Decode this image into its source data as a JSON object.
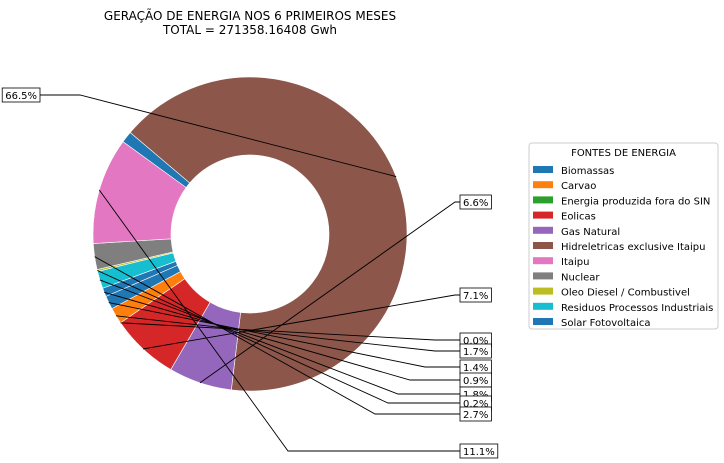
{
  "chart_data": {
    "type": "pie",
    "donut": true,
    "title": "GERAÇÃO DE ENERGIA NOS 6 PRIMEIROS MESES",
    "subtitle": "TOTAL = 271358.16408 Gwh",
    "legend": {
      "title": "FONTES DE ENERGIA",
      "placement": "right"
    },
    "slices": [
      {
        "name": "Solar Fotovoltaica",
        "value": 1.2,
        "label": "1.2%",
        "color": "#1f77b4"
      },
      {
        "name": "Hidreletricas exclusive Itaipu",
        "value": 66.5,
        "label": "66.5%",
        "color": "#8c564b"
      },
      {
        "name": "Gas Natural",
        "value": 6.6,
        "label": "6.6%",
        "color": "#9467bd"
      },
      {
        "name": "Eolicas",
        "value": 7.1,
        "label": "7.1%",
        "color": "#d62728"
      },
      {
        "name": "Energia produzida fora do SIN",
        "value": 0.0,
        "label": "0.0%",
        "color": "#2ca02c"
      },
      {
        "name": "Carvao",
        "value": 1.7,
        "label": "1.7%",
        "color": "#ff7f0e"
      },
      {
        "name": "Biomassas",
        "value": 1.4,
        "label": "1.4%",
        "color": "#1f77b4"
      },
      {
        "name": "Solar Fotovoltaica",
        "value": 0.9,
        "label": "0.9%",
        "color": "#1f77b4"
      },
      {
        "name": "Residuos Processos Industriais",
        "value": 1.8,
        "label": "1.8%",
        "color": "#17becf"
      },
      {
        "name": "Oleo Diesel / Combustivel",
        "value": 0.2,
        "label": "0.2%",
        "color": "#bcbd22"
      },
      {
        "name": "Nuclear",
        "value": 2.7,
        "label": "2.7%",
        "color": "#7f7f7f"
      },
      {
        "name": "Itaipu",
        "value": 11.1,
        "label": "11.1%",
        "color": "#e377c2"
      }
    ],
    "legend_entries": [
      {
        "name": "Biomassas",
        "color": "#1f77b4"
      },
      {
        "name": "Carvao",
        "color": "#ff7f0e"
      },
      {
        "name": "Energia produzida fora do SIN",
        "color": "#2ca02c"
      },
      {
        "name": "Eolicas",
        "color": "#d62728"
      },
      {
        "name": "Gas Natural",
        "color": "#9467bd"
      },
      {
        "name": "Hidreletricas exclusive Itaipu",
        "color": "#8c564b"
      },
      {
        "name": "Itaipu",
        "color": "#e377c2"
      },
      {
        "name": "Nuclear",
        "color": "#7f7f7f"
      },
      {
        "name": "Oleo Diesel / Combustivel",
        "color": "#bcbd22"
      },
      {
        "name": "Residuos Processos Industriais",
        "color": "#17becf"
      },
      {
        "name": "Solar Fotovoltaica",
        "color": "#1f77b4"
      }
    ]
  }
}
